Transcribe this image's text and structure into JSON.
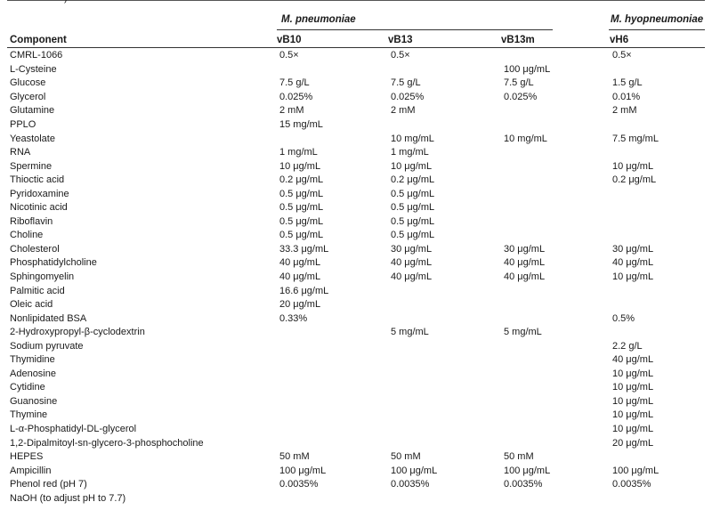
{
  "table": {
    "caption_fragment": ")",
    "groups": {
      "pneumoniae": "M. pneumoniae",
      "hyopneumoniae": "M. hyopneumoniae"
    },
    "columns": [
      "Component",
      "vB10",
      "vB13",
      "vB13m",
      "vH6"
    ],
    "rows": [
      [
        "CMRL-1066",
        "0.5×",
        "0.5×",
        "",
        "0.5×"
      ],
      [
        "L-Cysteine",
        "",
        "",
        "100 μg/mL",
        ""
      ],
      [
        "Glucose",
        "7.5 g/L",
        "7.5 g/L",
        "7.5 g/L",
        "1.5 g/L"
      ],
      [
        "Glycerol",
        "0.025%",
        "0.025%",
        "0.025%",
        "0.01%"
      ],
      [
        "Glutamine",
        "2 mM",
        "2 mM",
        "",
        "2 mM"
      ],
      [
        "PPLO",
        "15 mg/mL",
        "",
        "",
        ""
      ],
      [
        "Yeastolate",
        "",
        "10 mg/mL",
        "10 mg/mL",
        "7.5 mg/mL"
      ],
      [
        "RNA",
        "1 mg/mL",
        "1 mg/mL",
        "",
        ""
      ],
      [
        "Spermine",
        "10 μg/mL",
        "10 μg/mL",
        "",
        "10 μg/mL"
      ],
      [
        "Thioctic acid",
        "0.2 μg/mL",
        "0.2 μg/mL",
        "",
        "0.2 μg/mL"
      ],
      [
        "Pyridoxamine",
        "0.5 μg/mL",
        "0.5 μg/mL",
        "",
        ""
      ],
      [
        "Nicotinic acid",
        "0.5 μg/mL",
        "0.5 μg/mL",
        "",
        ""
      ],
      [
        "Riboflavin",
        "0.5 μg/mL",
        "0.5 μg/mL",
        "",
        ""
      ],
      [
        "Choline",
        "0.5 μg/mL",
        "0.5 μg/mL",
        "",
        ""
      ],
      [
        "Cholesterol",
        "33.3 μg/mL",
        "30 μg/mL",
        "30 μg/mL",
        "30 μg/mL"
      ],
      [
        "Phosphatidylcholine",
        "40 μg/mL",
        "40 μg/mL",
        "40 μg/mL",
        "40 μg/mL"
      ],
      [
        "Sphingomyelin",
        "40 μg/mL",
        "40 μg/mL",
        "40 μg/mL",
        "10 μg/mL"
      ],
      [
        "Palmitic acid",
        "16.6 μg/mL",
        "",
        "",
        ""
      ],
      [
        "Oleic acid",
        "20 μg/mL",
        "",
        "",
        ""
      ],
      [
        "Nonlipidated BSA",
        "0.33%",
        "",
        "",
        "0.5%"
      ],
      [
        "2-Hydroxypropyl-β-cyclodextrin",
        "",
        "5 mg/mL",
        "5 mg/mL",
        ""
      ],
      [
        "Sodium pyruvate",
        "",
        "",
        "",
        "2.2 g/L"
      ],
      [
        "Thymidine",
        "",
        "",
        "",
        "40 μg/mL"
      ],
      [
        "Adenosine",
        "",
        "",
        "",
        "10 μg/mL"
      ],
      [
        "Cytidine",
        "",
        "",
        "",
        "10 μg/mL"
      ],
      [
        "Guanosine",
        "",
        "",
        "",
        "10 μg/mL"
      ],
      [
        "Thymine",
        "",
        "",
        "",
        "10 μg/mL"
      ],
      [
        "L-α-Phosphatidyl-DL-glycerol",
        "",
        "",
        "",
        "10 μg/mL"
      ],
      [
        "1,2-Dipalmitoyl-sn-glycero-3-phosphocholine",
        "",
        "",
        "",
        "20 μg/mL"
      ],
      [
        "HEPES",
        "50 mM",
        "50 mM",
        "50 mM",
        ""
      ],
      [
        "Ampicillin",
        "100 μg/mL",
        "100 μg/mL",
        "100 μg/mL",
        "100 μg/mL"
      ],
      [
        "Phenol red (pH 7)",
        "0.0035%",
        "0.0035%",
        "0.0035%",
        "0.0035%"
      ],
      [
        "NaOH (to adjust pH to 7.7)",
        "",
        "",
        "",
        ""
      ]
    ]
  }
}
